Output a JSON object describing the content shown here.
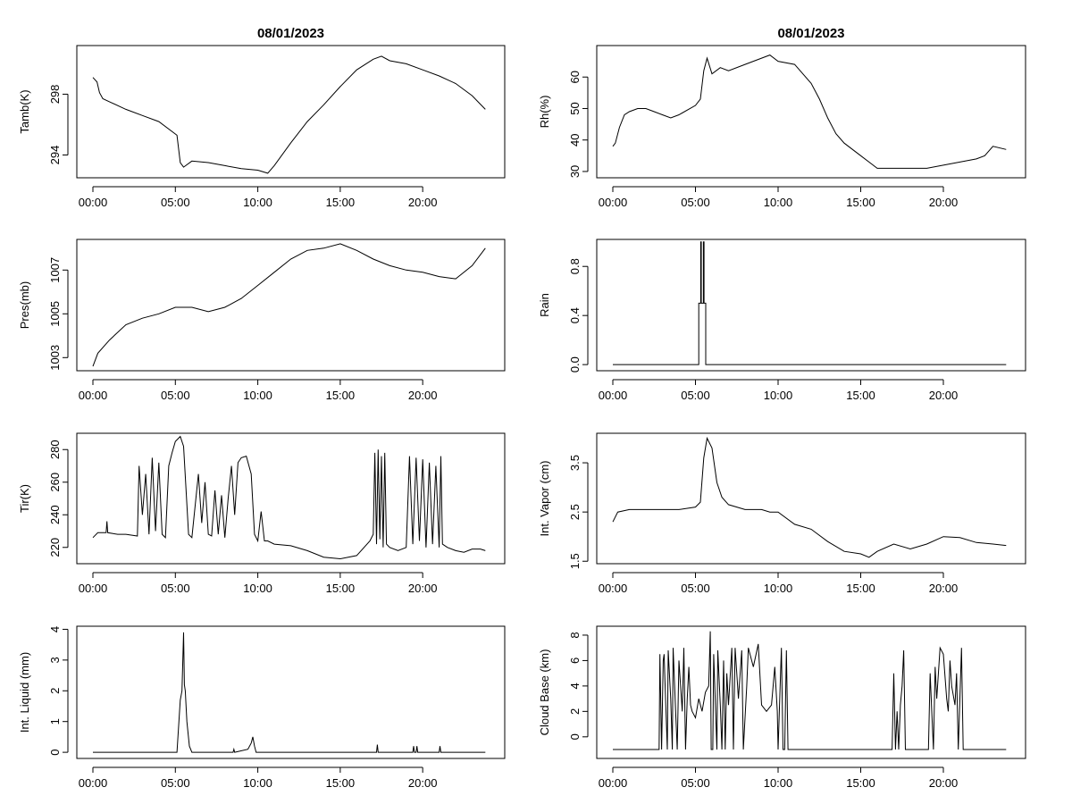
{
  "chart_data": [
    {
      "type": "line",
      "title": "08/01/2023",
      "ylabel": "Tamb(K)",
      "xlim": [
        0,
        24
      ],
      "ylim": [
        292.5,
        301.2
      ],
      "xticks": [
        0,
        5,
        10,
        15,
        20
      ],
      "xtick_labels": [
        "00:00",
        "05:00",
        "10:00",
        "15:00",
        "20:00"
      ],
      "yticks": [
        294,
        298
      ],
      "ytick_labels": [
        "294",
        "298"
      ],
      "x": [
        0,
        0.25,
        0.4,
        0.6,
        1,
        2,
        3,
        4,
        5.1,
        5.3,
        5.5,
        6,
        7,
        8,
        9,
        10,
        10.6,
        11,
        12,
        13,
        14,
        15,
        16,
        17,
        17.5,
        18,
        19,
        20,
        21,
        22,
        23,
        23.8
      ],
      "y": [
        299.1,
        298.8,
        298.1,
        297.7,
        297.5,
        297.0,
        296.6,
        296.2,
        295.3,
        293.5,
        293.2,
        293.6,
        293.5,
        293.3,
        293.1,
        293.0,
        292.8,
        293.3,
        294.8,
        296.2,
        297.3,
        298.5,
        299.6,
        300.3,
        300.5,
        300.2,
        300.0,
        299.6,
        299.2,
        298.7,
        297.9,
        297.0
      ]
    },
    {
      "type": "line",
      "title": "08/01/2023",
      "ylabel": "Rh(%)",
      "xlim": [
        0,
        24
      ],
      "ylim": [
        28,
        70
      ],
      "xticks": [
        0,
        5,
        10,
        15,
        20
      ],
      "xtick_labels": [
        "00:00",
        "05:00",
        "10:00",
        "15:00",
        "20:00"
      ],
      "yticks": [
        30,
        40,
        50,
        60
      ],
      "ytick_labels": [
        "30",
        "40",
        "50",
        "60"
      ],
      "x": [
        0,
        0.15,
        0.4,
        0.7,
        1,
        1.5,
        2,
        2.5,
        3,
        3.5,
        4,
        5,
        5.3,
        5.5,
        5.7,
        6,
        6.5,
        7,
        8,
        9,
        9.5,
        10,
        11,
        12,
        12.5,
        13,
        13.5,
        14,
        15,
        15.5,
        16,
        17,
        18,
        19,
        20,
        21,
        22,
        22.5,
        23,
        23.8
      ],
      "y": [
        38,
        39,
        44,
        48,
        49,
        50,
        50,
        49,
        48,
        47,
        48,
        51,
        53,
        62,
        66,
        61,
        63,
        62,
        64,
        66,
        67,
        65,
        64,
        58,
        53,
        47,
        42,
        39,
        35,
        33,
        31,
        31,
        31,
        31,
        32,
        33,
        34,
        35,
        38,
        37
      ]
    },
    {
      "type": "line",
      "title": "",
      "ylabel": "Pres(mb)",
      "xlim": [
        0,
        24
      ],
      "ylim": [
        1002.4,
        1008.4
      ],
      "xticks": [
        0,
        5,
        10,
        15,
        20
      ],
      "xtick_labels": [
        "00:00",
        "05:00",
        "10:00",
        "15:00",
        "20:00"
      ],
      "yticks": [
        1003,
        1005,
        1007
      ],
      "ytick_labels": [
        "1003",
        "1005",
        "1007"
      ],
      "x": [
        0,
        0.3,
        1,
        2,
        3,
        4,
        5,
        6,
        7,
        8,
        9,
        10,
        11,
        12,
        13,
        14,
        15,
        16,
        17,
        18,
        19,
        20,
        21,
        22,
        23,
        23.8
      ],
      "y": [
        1002.6,
        1003.2,
        1003.8,
        1004.5,
        1004.8,
        1005.0,
        1005.3,
        1005.3,
        1005.1,
        1005.3,
        1005.7,
        1006.3,
        1006.9,
        1007.5,
        1007.9,
        1008.0,
        1008.2,
        1007.9,
        1007.5,
        1007.2,
        1007.0,
        1006.9,
        1006.7,
        1006.6,
        1007.2,
        1008.0
      ]
    },
    {
      "type": "line",
      "title": "",
      "ylabel": "Rain",
      "xlim": [
        0,
        24
      ],
      "ylim": [
        -0.05,
        1.02
      ],
      "xticks": [
        0,
        5,
        10,
        15,
        20
      ],
      "xtick_labels": [
        "00:00",
        "05:00",
        "10:00",
        "15:00",
        "20:00"
      ],
      "yticks": [
        0.0,
        0.4,
        0.8
      ],
      "ytick_labels": [
        "0.0",
        "0.4",
        "0.8"
      ],
      "x": [
        0,
        5.2,
        5.2,
        5.32,
        5.32,
        5.35,
        5.35,
        5.48,
        5.48,
        5.52,
        5.52,
        5.62,
        5.62,
        23.8
      ],
      "y": [
        0,
        0,
        0.5,
        0.5,
        1,
        1,
        0.5,
        0.5,
        1,
        1,
        0.5,
        0.5,
        0,
        0
      ]
    },
    {
      "type": "line",
      "title": "",
      "ylabel": "Tir(K)",
      "xlim": [
        0,
        24
      ],
      "ylim": [
        210,
        290
      ],
      "xticks": [
        0,
        5,
        10,
        15,
        20
      ],
      "xtick_labels": [
        "00:00",
        "05:00",
        "10:00",
        "15:00",
        "20:00"
      ],
      "yticks": [
        220,
        240,
        260,
        280
      ],
      "ytick_labels": [
        "220",
        "240",
        "260",
        "280"
      ],
      "x": [
        0,
        0.3,
        0.8,
        0.85,
        0.9,
        1.5,
        2,
        2.7,
        2.8,
        3.0,
        3.2,
        3.4,
        3.6,
        3.8,
        4.0,
        4.2,
        4.4,
        4.6,
        4.8,
        5.0,
        5.3,
        5.5,
        5.8,
        6.0,
        6.4,
        6.6,
        6.8,
        7.0,
        7.2,
        7.4,
        7.6,
        7.8,
        8.0,
        8.2,
        8.4,
        8.6,
        8.8,
        9.0,
        9.3,
        9.6,
        9.8,
        10.0,
        10.2,
        10.4,
        10.6,
        11,
        12,
        13,
        14,
        15,
        16,
        16.8,
        17.0,
        17.1,
        17.2,
        17.3,
        17.4,
        17.5,
        17.6,
        17.7,
        17.8,
        18,
        18.5,
        19,
        19.2,
        19.4,
        19.6,
        19.8,
        20.0,
        20.2,
        20.4,
        20.6,
        20.8,
        21.0,
        21.1,
        21.2,
        21.5,
        22,
        22.5,
        23,
        23.5,
        23.8
      ],
      "y": [
        226,
        229,
        229,
        236,
        229,
        228,
        228,
        227,
        270,
        240,
        265,
        228,
        275,
        230,
        272,
        228,
        226,
        270,
        278,
        285,
        288,
        282,
        228,
        226,
        265,
        235,
        260,
        228,
        227,
        255,
        228,
        252,
        226,
        250,
        270,
        240,
        272,
        275,
        276,
        265,
        228,
        224,
        242,
        224,
        224,
        222,
        221,
        218,
        214,
        213,
        215,
        224,
        228,
        278,
        222,
        280,
        225,
        276,
        220,
        278,
        222,
        220,
        218,
        220,
        276,
        222,
        275,
        224,
        274,
        220,
        272,
        222,
        270,
        220,
        276,
        222,
        220,
        218,
        217,
        219,
        219,
        218
      ]
    },
    {
      "type": "line",
      "title": "",
      "ylabel": "Int. Vapor (cm)",
      "xlim": [
        0,
        24
      ],
      "ylim": [
        1.45,
        4.1
      ],
      "xticks": [
        0,
        5,
        10,
        15,
        20
      ],
      "xtick_labels": [
        "00:00",
        "05:00",
        "10:00",
        "15:00",
        "20:00"
      ],
      "yticks": [
        1.5,
        2.5,
        3.5
      ],
      "ytick_labels": [
        "1.5",
        "2.5",
        "3.5"
      ],
      "x": [
        0,
        0.3,
        1,
        2,
        3,
        4,
        5,
        5.3,
        5.5,
        5.7,
        6.0,
        6.3,
        6.6,
        7,
        8,
        9,
        9.5,
        10,
        11,
        12,
        13,
        14,
        15,
        15.5,
        16,
        17,
        18,
        19,
        20,
        21,
        22,
        23,
        23.8
      ],
      "y": [
        2.3,
        2.5,
        2.55,
        2.55,
        2.55,
        2.55,
        2.6,
        2.7,
        3.6,
        4.0,
        3.8,
        3.1,
        2.8,
        2.65,
        2.55,
        2.55,
        2.5,
        2.5,
        2.25,
        2.15,
        1.9,
        1.7,
        1.65,
        1.58,
        1.7,
        1.85,
        1.75,
        1.85,
        2.0,
        1.98,
        1.88,
        1.85,
        1.82
      ]
    },
    {
      "type": "line",
      "title": "",
      "ylabel": "Int. Liquid (mm)",
      "xlim": [
        0,
        24
      ],
      "ylim": [
        -0.2,
        4.1
      ],
      "xticks": [
        0,
        5,
        10,
        15,
        20
      ],
      "xtick_labels": [
        "00:00",
        "05:00",
        "10:00",
        "15:00",
        "20:00"
      ],
      "yticks": [
        0,
        1,
        2,
        3,
        4
      ],
      "ytick_labels": [
        "0",
        "1",
        "2",
        "3",
        "4"
      ],
      "x": [
        0,
        5.1,
        5.3,
        5.4,
        5.5,
        5.55,
        5.6,
        5.7,
        5.85,
        6.0,
        8.5,
        8.55,
        8.6,
        9.4,
        9.6,
        9.7,
        9.8,
        9.9,
        10.0,
        17.2,
        17.25,
        17.3,
        19.4,
        19.45,
        19.5,
        19.6,
        19.65,
        19.7,
        21.0,
        21.05,
        21.1,
        23.8
      ],
      "y": [
        0,
        0,
        1.7,
        2.0,
        3.9,
        2.2,
        2.0,
        1.0,
        0.2,
        0,
        0,
        0.1,
        0,
        0.1,
        0.3,
        0.5,
        0.2,
        0,
        0,
        0,
        0.25,
        0,
        0,
        0.2,
        0,
        0,
        0.2,
        0,
        0,
        0.2,
        0,
        0
      ]
    },
    {
      "type": "line",
      "title": "",
      "ylabel": "Cloud Base (km)",
      "xlim": [
        0,
        24
      ],
      "ylim": [
        -1.7,
        8.7
      ],
      "xticks": [
        0,
        5,
        10,
        15,
        20
      ],
      "xtick_labels": [
        "00:00",
        "05:00",
        "10:00",
        "15:00",
        "20:00"
      ],
      "yticks": [
        0,
        2,
        4,
        6,
        8
      ],
      "ytick_labels": [
        "0",
        "2",
        "4",
        "6",
        "8"
      ],
      "x": [
        0,
        2.8,
        2.85,
        2.95,
        3.05,
        3.1,
        3.15,
        3.3,
        3.35,
        3.5,
        3.6,
        3.65,
        3.8,
        3.9,
        4.0,
        4.2,
        4.3,
        4.4,
        4.5,
        4.6,
        4.7,
        4.8,
        5.0,
        5.2,
        5.4,
        5.6,
        5.8,
        5.9,
        5.95,
        6.05,
        6.1,
        6.3,
        6.35,
        6.5,
        6.6,
        6.7,
        6.8,
        6.9,
        7.0,
        7.2,
        7.3,
        7.4,
        7.6,
        7.8,
        7.9,
        8.1,
        8.2,
        8.5,
        8.8,
        9.0,
        9.3,
        9.6,
        9.8,
        9.95,
        10.0,
        10.2,
        10.3,
        10.4,
        10.5,
        10.6,
        10.7,
        10.75,
        16.9,
        17.0,
        17.1,
        17.2,
        17.3,
        17.4,
        17.5,
        17.6,
        17.7,
        17.75,
        19.1,
        19.2,
        19.3,
        19.4,
        19.5,
        19.6,
        19.8,
        20.0,
        20.2,
        20.3,
        20.4,
        20.5,
        20.7,
        20.8,
        20.9,
        21.0,
        21.1,
        21.2,
        21.25,
        23.8
      ],
      "y": [
        -1,
        -1,
        6.5,
        -1,
        6.0,
        6.5,
        4.5,
        -1,
        6.8,
        3.0,
        -1,
        7.0,
        2.0,
        -1,
        6.0,
        2.0,
        7.0,
        -1,
        3.0,
        5.5,
        2.5,
        2.0,
        1.5,
        3.0,
        2.0,
        3.5,
        4.0,
        8.3,
        -1,
        -1,
        6.5,
        -1,
        6.8,
        2.5,
        -1,
        6.0,
        -1,
        5.0,
        2.5,
        7.0,
        -1,
        7.0,
        3.0,
        6.8,
        -1,
        4.0,
        7.0,
        5.5,
        7.3,
        2.5,
        2.0,
        2.5,
        5.5,
        2.0,
        -1,
        7.0,
        -1,
        -1,
        6.8,
        -1,
        -1,
        -1,
        -1,
        5.0,
        -1,
        2.0,
        -1,
        2.5,
        4.0,
        6.8,
        -1,
        -1,
        -1,
        5.0,
        2.0,
        -1,
        5.5,
        3.0,
        7.0,
        6.5,
        3.0,
        2.0,
        6.0,
        4.0,
        2.5,
        5.0,
        -1,
        3.0,
        7.0,
        -1,
        -1,
        -1
      ]
    }
  ]
}
